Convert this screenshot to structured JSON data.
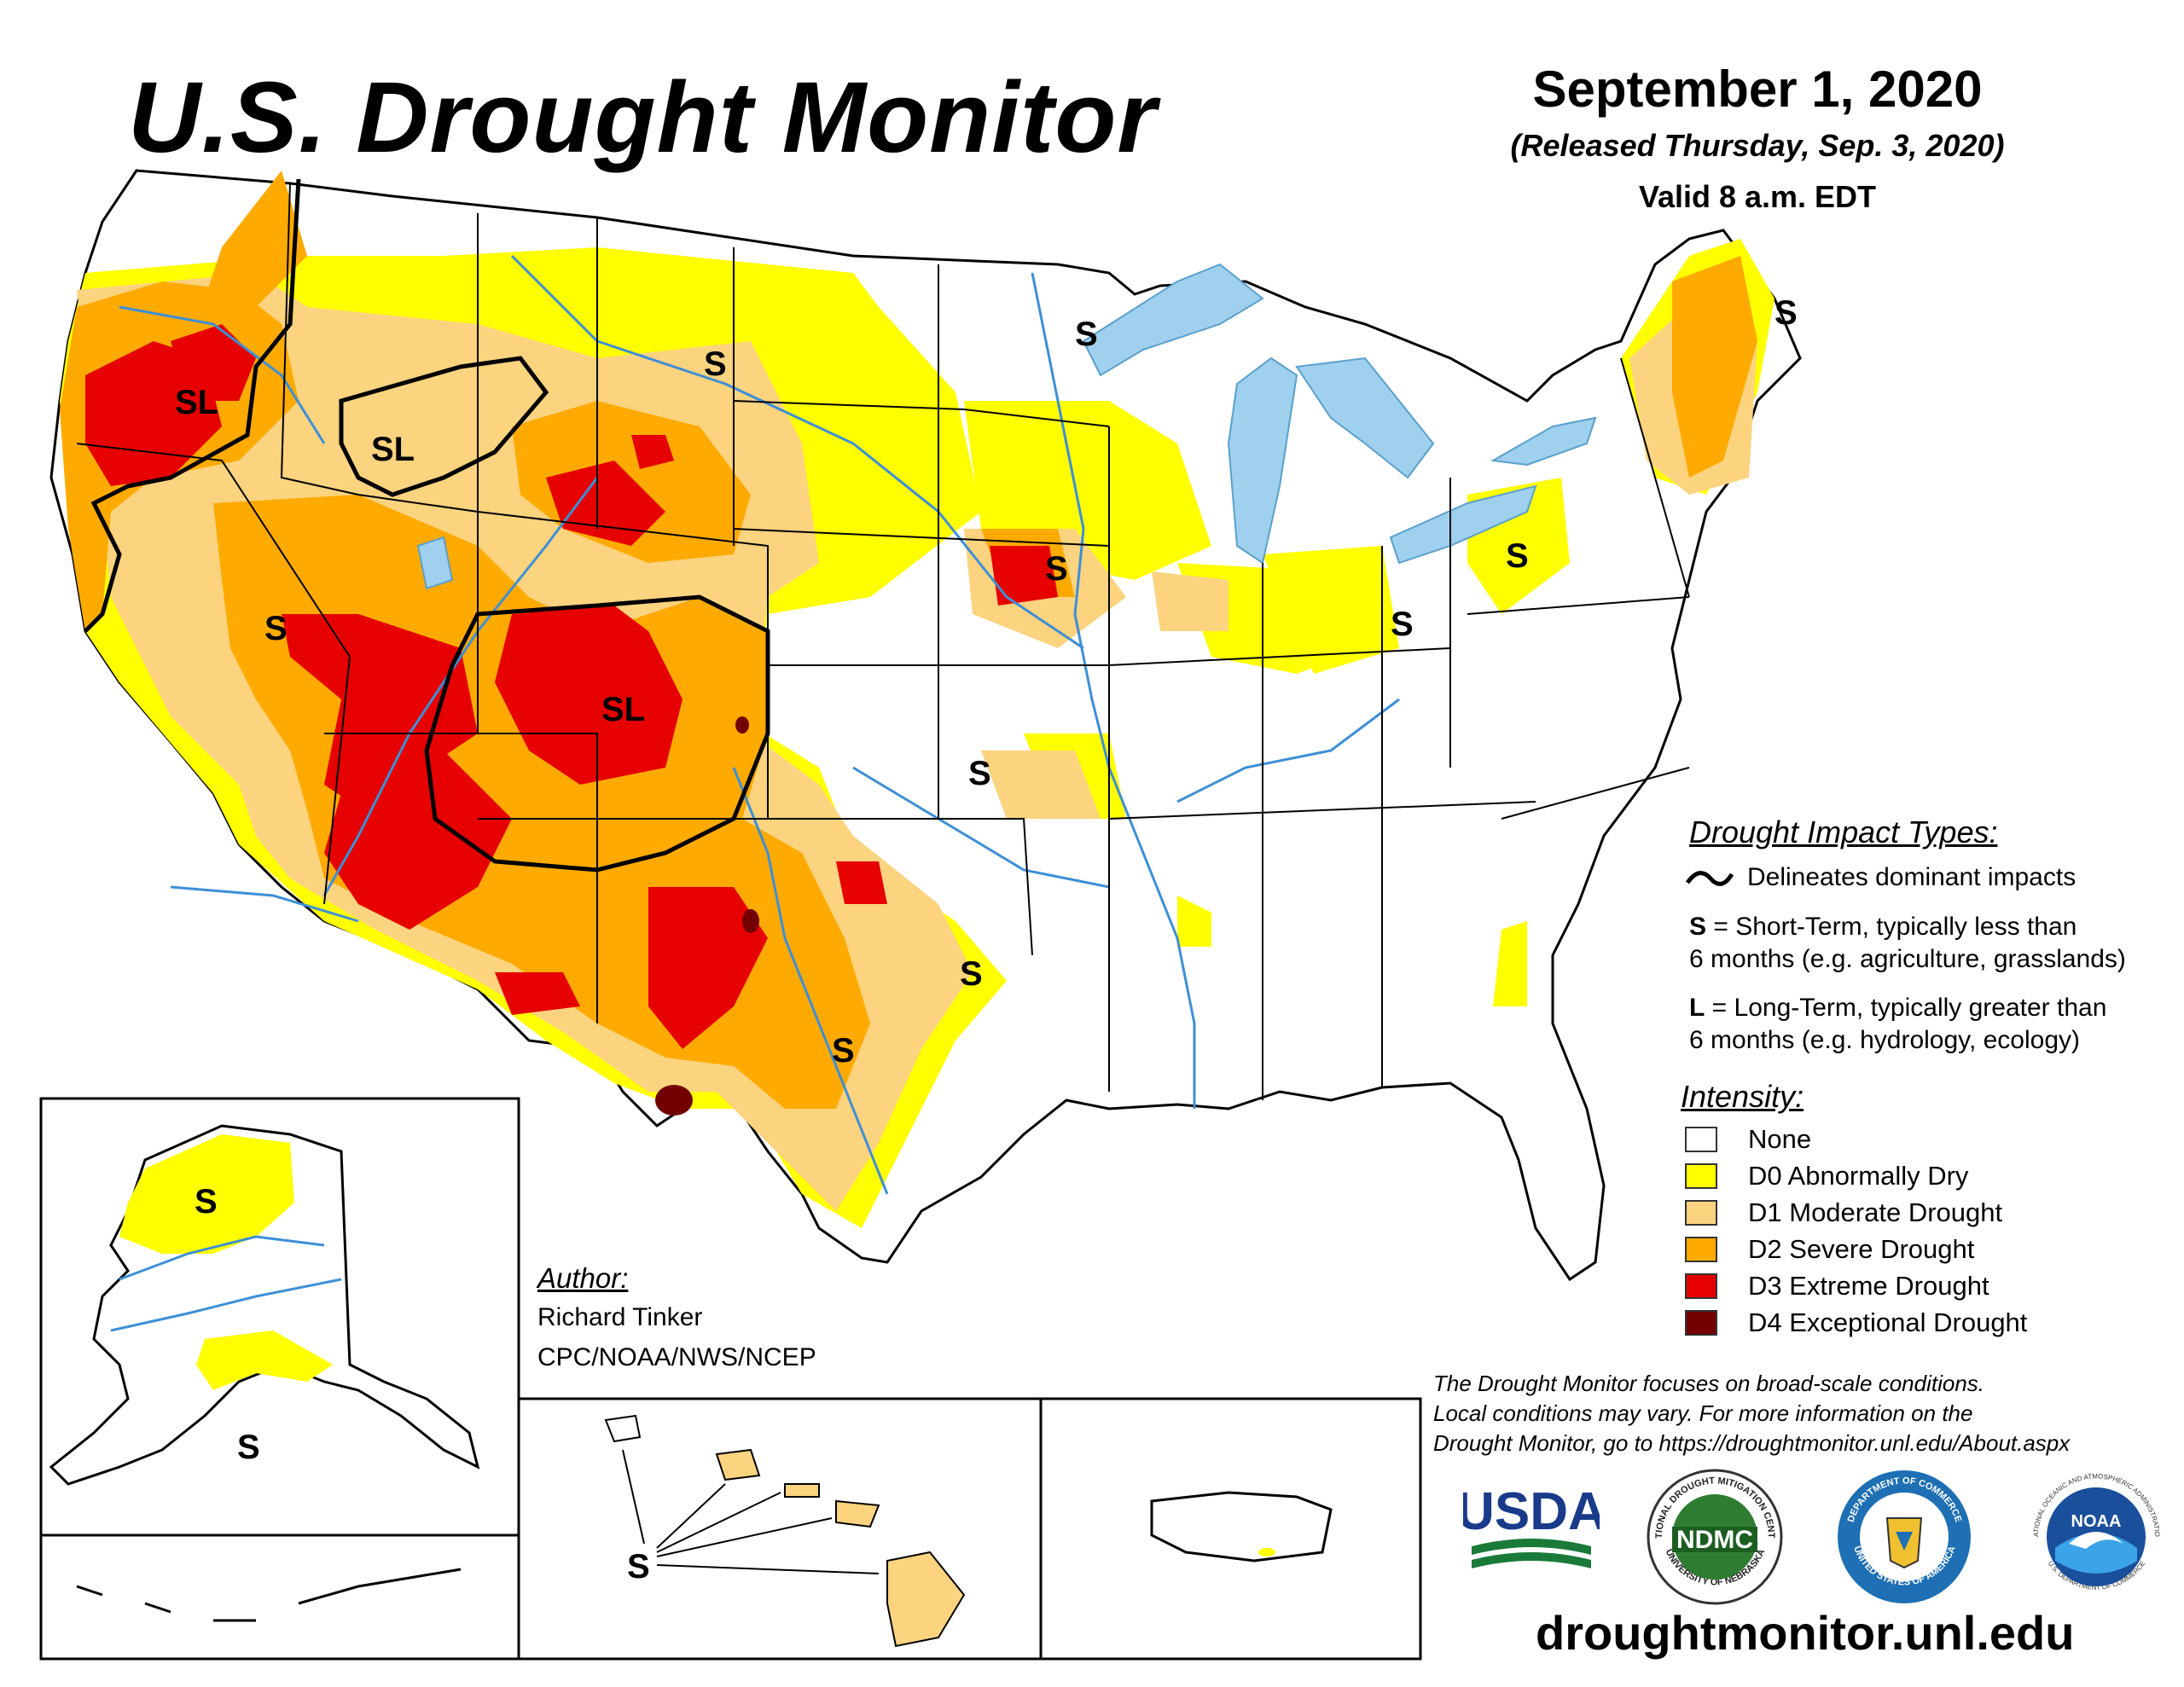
{
  "header": {
    "title": "U.S. Drought Monitor",
    "date": "September 1, 2020",
    "released": "(Released Thursday, Sep. 3, 2020)",
    "valid": "Valid 8 a.m. EDT"
  },
  "map_labels": {
    "sl": "SL",
    "s": "S"
  },
  "impact": {
    "heading": "Drought Impact Types:",
    "delineates": "Delineates dominant impacts",
    "short_term_key": "S",
    "short_term_1": " = Short-Term, typically less than",
    "short_term_2": "6 months (e.g. agriculture, grasslands)",
    "long_term_key": "L",
    "long_term_1": " = Long-Term, typically greater than",
    "long_term_2": "6 months (e.g. hydrology, ecology)"
  },
  "intensity": {
    "heading": "Intensity:",
    "levels": [
      {
        "label": "None",
        "color": "#ffffff"
      },
      {
        "label": "D0 Abnormally Dry",
        "color": "#ffff00"
      },
      {
        "label": "D1 Moderate Drought",
        "color": "#fcd37f"
      },
      {
        "label": "D2 Severe Drought",
        "color": "#ffaa00"
      },
      {
        "label": "D3 Extreme Drought",
        "color": "#e60000"
      },
      {
        "label": "D4 Exceptional Drought",
        "color": "#730000"
      }
    ]
  },
  "author": {
    "heading": "Author:",
    "name": "Richard Tinker",
    "org": "CPC/NOAA/NWS/NCEP"
  },
  "disclaimer": {
    "line1": "The Drought Monitor focuses on broad-scale conditions.",
    "line2": "Local conditions may vary. For more information on the",
    "line3": "Drought Monitor, go to https://droughtmonitor.unl.edu/About.aspx"
  },
  "logos": {
    "usda": "USDA",
    "ndmc": "NDMC",
    "ndmc_ring_top": "NATIONAL DROUGHT MITIGATION CENTER",
    "ndmc_ring_bottom": "UNIVERSITY OF NEBRASKA",
    "doc_ring_top": "DEPARTMENT OF COMMERCE",
    "doc_ring_bottom": "UNITED STATES OF AMERICA",
    "noaa": "NOAA",
    "noaa_ring_top": "NATIONAL OCEANIC AND ATMOSPHERIC ADMINISTRATION",
    "noaa_ring_bottom": "U.S. DEPARTMENT OF COMMERCE"
  },
  "website": "droughtmonitor.unl.edu",
  "colors": {
    "water": "#9fd0ee",
    "river": "#3d8fd6",
    "border": "#000000"
  }
}
